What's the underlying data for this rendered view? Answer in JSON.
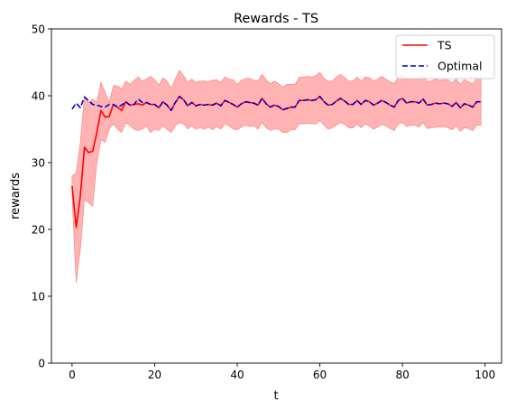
{
  "chart_data": {
    "type": "line",
    "title": "Rewards - TS",
    "xlabel": "t",
    "ylabel": "rewards",
    "xlim": [
      -5,
      104
    ],
    "ylim": [
      0,
      50
    ],
    "xticks": [
      0,
      20,
      40,
      60,
      80,
      100
    ],
    "yticks": [
      0,
      10,
      20,
      30,
      40,
      50
    ],
    "legend_position": "top-right",
    "grid": false,
    "colors": {
      "ts": "#ff0000",
      "band": "#ff9999",
      "optimal": "#0000cc"
    },
    "series": [
      {
        "name": "TS",
        "style": "solid",
        "x": [
          0,
          1,
          2,
          3,
          4,
          5,
          6,
          7,
          8,
          9,
          10,
          11,
          12,
          13,
          14,
          15,
          16,
          17,
          18,
          19,
          20,
          21,
          22,
          23,
          24,
          25,
          26,
          27,
          28,
          29,
          30,
          31,
          32,
          33,
          34,
          35,
          36,
          37,
          38,
          39,
          40,
          41,
          42,
          43,
          44,
          45,
          46,
          47,
          48,
          49,
          50,
          51,
          52,
          53,
          54,
          55,
          56,
          57,
          58,
          59,
          60,
          61,
          62,
          63,
          64,
          65,
          66,
          67,
          68,
          69,
          70,
          71,
          72,
          73,
          74,
          75,
          76,
          77,
          78,
          79,
          80,
          81,
          82,
          83,
          84,
          85,
          86,
          87,
          88,
          89,
          90,
          91,
          92,
          93,
          94,
          95,
          96,
          97,
          98,
          99
        ],
        "y": [
          26.5,
          20.3,
          25.0,
          32.3,
          31.5,
          31.7,
          34.5,
          37.8,
          36.8,
          36.9,
          38.7,
          38.3,
          37.8,
          39.1,
          38.6,
          38.7,
          38.8,
          38.6,
          39.0,
          38.7,
          38.7,
          38.2,
          39.1,
          38.6,
          37.8,
          39.0,
          39.9,
          39.4,
          38.5,
          39.0,
          38.5,
          38.7,
          38.6,
          38.7,
          38.6,
          38.9,
          38.5,
          39.3,
          39.0,
          38.7,
          38.3,
          38.8,
          39.1,
          39.0,
          38.9,
          38.6,
          39.6,
          38.8,
          38.3,
          38.6,
          38.4,
          37.9,
          38.1,
          38.3,
          38.3,
          39.3,
          39.3,
          39.4,
          39.3,
          39.4,
          39.9,
          39.1,
          38.6,
          38.7,
          39.2,
          39.6,
          39.2,
          38.7,
          38.7,
          39.3,
          38.7,
          39.3,
          39.1,
          38.6,
          38.9,
          39.3,
          39.0,
          38.6,
          38.3,
          39.3,
          39.6,
          38.9,
          39.1,
          39.1,
          38.9,
          39.5,
          38.6,
          38.7,
          38.9,
          38.8,
          38.9,
          38.8,
          38.4,
          39.0,
          38.2,
          38.8,
          38.6,
          38.3,
          39.1,
          39.1
        ],
        "lower": [
          25.0,
          12.0,
          17.0,
          24.5,
          24.0,
          23.5,
          30.0,
          33.5,
          33.0,
          35.0,
          35.8,
          35.0,
          34.5,
          36.0,
          35.5,
          35.0,
          34.8,
          35.0,
          35.5,
          34.5,
          35.0,
          34.8,
          35.5,
          35.0,
          34.5,
          35.5,
          36.0,
          35.8,
          35.0,
          35.5,
          35.0,
          35.2,
          35.0,
          35.3,
          34.9,
          35.4,
          35.0,
          35.8,
          35.5,
          35.0,
          34.9,
          35.3,
          35.6,
          35.4,
          35.5,
          35.0,
          36.0,
          35.2,
          34.8,
          35.0,
          35.0,
          34.5,
          34.5,
          34.9,
          34.9,
          35.8,
          35.8,
          35.9,
          35.8,
          35.8,
          36.3,
          35.6,
          35.0,
          35.2,
          35.6,
          36.0,
          35.7,
          35.2,
          35.2,
          35.8,
          35.2,
          35.8,
          35.5,
          35.0,
          35.3,
          35.7,
          35.5,
          35.1,
          34.8,
          35.8,
          36.0,
          35.4,
          35.6,
          35.6,
          35.3,
          36.0,
          35.1,
          35.2,
          35.3,
          35.3,
          35.4,
          35.2,
          34.9,
          35.5,
          34.7,
          35.2,
          35.1,
          34.8,
          35.6,
          35.6
        ],
        "upper": [
          28.0,
          28.5,
          33.0,
          40.0,
          39.0,
          39.5,
          39.0,
          42.0,
          40.5,
          39.0,
          41.5,
          41.5,
          41.0,
          42.2,
          41.7,
          42.3,
          42.8,
          42.2,
          42.5,
          42.9,
          42.4,
          41.6,
          42.7,
          42.2,
          41.1,
          42.5,
          43.8,
          43.0,
          42.0,
          42.5,
          42.0,
          42.2,
          42.2,
          42.1,
          42.3,
          42.4,
          42.0,
          42.8,
          42.5,
          42.4,
          41.7,
          42.3,
          42.6,
          42.6,
          42.3,
          42.2,
          43.2,
          42.4,
          41.8,
          42.2,
          41.8,
          41.3,
          41.7,
          41.7,
          41.7,
          42.8,
          42.8,
          42.9,
          42.8,
          43.0,
          43.5,
          42.6,
          42.2,
          42.2,
          42.8,
          43.2,
          42.7,
          42.2,
          42.2,
          42.8,
          42.2,
          42.8,
          42.7,
          42.2,
          42.5,
          42.9,
          42.5,
          42.1,
          41.8,
          42.8,
          43.2,
          42.4,
          42.6,
          42.6,
          42.5,
          43.0,
          42.1,
          42.2,
          42.5,
          42.3,
          42.4,
          42.4,
          41.9,
          42.5,
          41.7,
          42.4,
          42.1,
          41.8,
          42.6,
          42.6
        ]
      },
      {
        "name": "Optimal",
        "style": "dashed",
        "x": [
          0,
          1,
          2,
          3,
          4,
          5,
          6,
          7,
          8,
          9,
          10,
          11,
          12,
          13,
          14,
          15,
          16,
          17,
          18,
          19,
          20,
          21,
          22,
          23,
          24,
          25,
          26,
          27,
          28,
          29,
          30,
          31,
          32,
          33,
          34,
          35,
          36,
          37,
          38,
          39,
          40,
          41,
          42,
          43,
          44,
          45,
          46,
          47,
          48,
          49,
          50,
          51,
          52,
          53,
          54,
          55,
          56,
          57,
          58,
          59,
          60,
          61,
          62,
          63,
          64,
          65,
          66,
          67,
          68,
          69,
          70,
          71,
          72,
          73,
          74,
          75,
          76,
          77,
          78,
          79,
          80,
          81,
          82,
          83,
          84,
          85,
          86,
          87,
          88,
          89,
          90,
          91,
          92,
          93,
          94,
          95,
          96,
          97,
          98,
          99
        ],
        "y": [
          38.0,
          38.9,
          38.2,
          39.8,
          39.3,
          38.7,
          38.6,
          38.4,
          38.3,
          38.7,
          38.7,
          38.3,
          38.6,
          39.1,
          38.6,
          38.7,
          39.5,
          39.0,
          39.0,
          38.7,
          38.7,
          38.2,
          39.1,
          38.6,
          37.8,
          39.0,
          39.9,
          39.4,
          38.5,
          39.0,
          38.5,
          38.7,
          38.6,
          38.7,
          38.6,
          38.9,
          38.5,
          39.3,
          39.0,
          38.7,
          38.3,
          38.8,
          39.1,
          39.0,
          38.9,
          38.6,
          39.6,
          38.8,
          38.3,
          38.6,
          38.4,
          37.9,
          38.1,
          38.3,
          38.3,
          39.3,
          39.3,
          39.4,
          39.3,
          39.4,
          39.9,
          39.1,
          38.6,
          38.7,
          39.2,
          39.6,
          39.2,
          38.7,
          38.7,
          39.3,
          38.7,
          39.3,
          39.1,
          38.6,
          38.9,
          39.3,
          39.0,
          38.6,
          38.3,
          39.3,
          39.6,
          38.9,
          39.1,
          39.1,
          38.9,
          39.5,
          38.6,
          38.7,
          38.9,
          38.8,
          38.9,
          38.8,
          38.4,
          39.0,
          38.2,
          38.8,
          38.6,
          38.3,
          39.1,
          39.1
        ]
      }
    ]
  }
}
